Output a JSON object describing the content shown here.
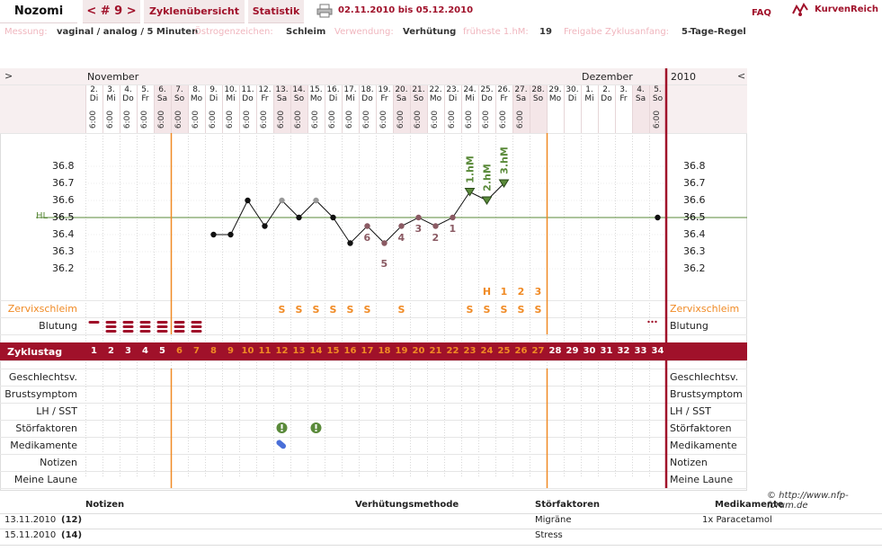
{
  "header": {
    "user_name": "Nozomi",
    "cycle_nav": "< # 9 >",
    "tabs": [
      "Zyklenübersicht",
      "Statistik"
    ],
    "date_range": "02.11.2010 bis 05.12.2010",
    "faq_label": "FAQ",
    "brand": "KurvenReich"
  },
  "info": {
    "messung_label": "Messung:",
    "messung_value": "vaginal / analog / 5 Minuten",
    "oestrogen_label": "Östrogenzeichen:",
    "oestrogen_value": "Schleim",
    "verwendung_label": "Verwendung:",
    "verwendung_value": "Verhütung",
    "frueheste_label": "früheste 1.hM:",
    "frueheste_value": "19",
    "freigabe_label": "Freigabe Zyklusanfang:",
    "freigabe_value": "5-Tage-Regel"
  },
  "calendar": {
    "nav_left": ">",
    "nav_right": "<",
    "month_left": "November",
    "month_right": "Dezember",
    "year": "2010",
    "dates": [
      "2.",
      "3.",
      "4.",
      "5.",
      "6.",
      "7.",
      "8.",
      "9.",
      "10.",
      "11.",
      "12.",
      "13.",
      "14.",
      "15.",
      "16.",
      "17.",
      "18.",
      "19.",
      "20.",
      "21.",
      "22.",
      "23.",
      "24.",
      "25.",
      "26.",
      "27.",
      "28.",
      "29.",
      "30.",
      "1.",
      "2.",
      "3.",
      "4.",
      "5."
    ],
    "weekdays": [
      "Di",
      "Mi",
      "Do",
      "Fr",
      "Sa",
      "So",
      "Mo",
      "Di",
      "Mi",
      "Do",
      "Fr",
      "Sa",
      "So",
      "Mo",
      "Di",
      "Mi",
      "Do",
      "Fr",
      "Sa",
      "So",
      "Mo",
      "Di",
      "Mi",
      "Do",
      "Fr",
      "Sa",
      "So",
      "Mo",
      "Di",
      "Mi",
      "Do",
      "Fr",
      "Sa",
      "So"
    ],
    "times": [
      "6:00",
      "6:00",
      "6:00",
      "6:00",
      "6:00",
      "6:00",
      "6:00",
      "6:00",
      "6:00",
      "6:00",
      "6:00",
      "6:00",
      "6:00",
      "6:00",
      "6:00",
      "6:00",
      "6:00",
      "6:00",
      "6:00",
      "6:00",
      "6:00",
      "6:00",
      "6:00",
      "6:00",
      "6:00",
      "6:00",
      "",
      "",
      "",
      "",
      "",
      "",
      "",
      "6:00"
    ],
    "weekend_shaded": [
      false,
      false,
      false,
      false,
      true,
      true,
      false,
      false,
      false,
      false,
      false,
      true,
      true,
      false,
      false,
      false,
      false,
      false,
      true,
      true,
      false,
      false,
      false,
      false,
      false,
      true,
      true,
      false,
      false,
      false,
      false,
      false,
      true,
      true
    ]
  },
  "chart_data": {
    "type": "line",
    "ylabel": "",
    "yticks": [
      36.2,
      36.3,
      36.4,
      36.5,
      36.6,
      36.7,
      36.8
    ],
    "ylim": [
      36.1,
      36.95
    ],
    "hl_label": "HL",
    "hl_value": 36.5,
    "x": [
      8,
      9,
      10,
      11,
      12,
      13,
      14,
      15,
      16,
      17,
      18,
      19,
      20,
      21,
      22,
      23,
      24,
      25,
      34
    ],
    "temperatures": [
      36.4,
      36.4,
      36.6,
      36.45,
      36.6,
      36.5,
      36.6,
      36.5,
      36.35,
      36.45,
      36.35,
      36.45,
      36.5,
      36.45,
      36.5,
      36.65,
      36.6,
      36.7,
      36.5
    ],
    "excluded_points_days": [
      12,
      14
    ],
    "low_labels": [
      {
        "day": 17,
        "label": "6"
      },
      {
        "day": 18,
        "label": "5"
      },
      {
        "day": 19,
        "label": "4"
      },
      {
        "day": 20,
        "label": "3"
      },
      {
        "day": 21,
        "label": "2"
      },
      {
        "day": 22,
        "label": "1"
      }
    ],
    "high_labels": [
      {
        "day": 23,
        "label": "1.hM"
      },
      {
        "day": 24,
        "label": "2.hM"
      },
      {
        "day": 25,
        "label": "3.hM"
      }
    ],
    "grid": true
  },
  "rows": {
    "zervix_label": "Zervixschleim",
    "blutung_label": "Blutung",
    "zyklustag_label": "Zyklustag",
    "geschlecht_label": "Geschlechtsv.",
    "brust_label": "Brustsymptom",
    "lh_label": "LH / SST",
    "stoer_label": "Störfaktoren",
    "medi_label": "Medikamente",
    "notizen_label": "Notizen",
    "laune_label": "Meine Laune"
  },
  "zervix": {
    "days": [
      12,
      13,
      14,
      15,
      16,
      17,
      19,
      23,
      24,
      25,
      26,
      27
    ],
    "symbols": [
      "S",
      "S",
      "S",
      "S",
      "S",
      "S",
      "S",
      "S",
      "S",
      "S",
      "S",
      "S"
    ],
    "peak_marks": [
      {
        "day": 24,
        "label": "H"
      },
      {
        "day": 25,
        "label": "1"
      },
      {
        "day": 26,
        "label": "2"
      },
      {
        "day": 27,
        "label": "3"
      }
    ]
  },
  "blutung": {
    "days": [
      1,
      2,
      3,
      4,
      5,
      6,
      7
    ],
    "levels": [
      1,
      3,
      3,
      3,
      3,
      3,
      3
    ],
    "spotting_day": 34
  },
  "cycle_days": [
    "1",
    "2",
    "3",
    "4",
    "5",
    "6",
    "7",
    "8",
    "9",
    "10",
    "11",
    "12",
    "13",
    "14",
    "15",
    "16",
    "17",
    "18",
    "19",
    "20",
    "21",
    "22",
    "23",
    "24",
    "25",
    "26",
    "27",
    "28",
    "29",
    "30",
    "31",
    "32",
    "33",
    "34"
  ],
  "stoer_days": [
    12,
    14
  ],
  "medi_days": [
    12
  ],
  "copyright": "© http://www.nfp-forum.de",
  "notes_table": {
    "headers": [
      "Notizen",
      "Verhütungsmethode",
      "Störfaktoren",
      "Medikamente"
    ],
    "rows": [
      {
        "date": "13.11.2010",
        "day": "(12)",
        "stoer": "Migräne",
        "medi": "1x Paracetamol"
      },
      {
        "date": "15.11.2010",
        "day": "(14)",
        "stoer": "Stress",
        "medi": ""
      }
    ]
  },
  "colors": {
    "accent": "#a0112a",
    "orange": "#f08a24",
    "green": "#5a8a3a",
    "low_mark": "#8a5a63",
    "pink_label": "#f0b6be"
  }
}
